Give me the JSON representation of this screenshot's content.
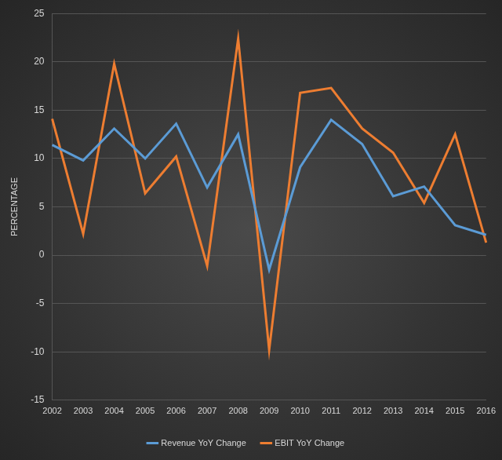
{
  "chart_data": {
    "type": "line",
    "y_label": "PERCENTAGE",
    "categories": [
      "2002",
      "2003",
      "2004",
      "2005",
      "2006",
      "2007",
      "2008",
      "2009",
      "2010",
      "2011",
      "2012",
      "2013",
      "2014",
      "2015",
      "2016"
    ],
    "series": [
      {
        "name": "Revenue YoY Change",
        "color": "#5b9bd5",
        "values": [
          11.4,
          9.8,
          13.1,
          10.0,
          13.6,
          7.0,
          12.5,
          -1.5,
          9.1,
          14.0,
          11.5,
          6.1,
          7.1,
          3.1,
          2.1
        ]
      },
      {
        "name": "EBIT YoY Change",
        "color": "#ed7d31",
        "values": [
          14.1,
          2.2,
          19.8,
          6.4,
          10.2,
          -1.1,
          22.4,
          -9.8,
          16.8,
          17.3,
          13.1,
          10.6,
          5.4,
          12.5,
          1.3
        ]
      }
    ],
    "ylim": [
      -15,
      25
    ],
    "yticks": [
      -15,
      -10,
      -5,
      0,
      5,
      10,
      15,
      20,
      25
    ],
    "grid": true,
    "legend": "bottom"
  }
}
